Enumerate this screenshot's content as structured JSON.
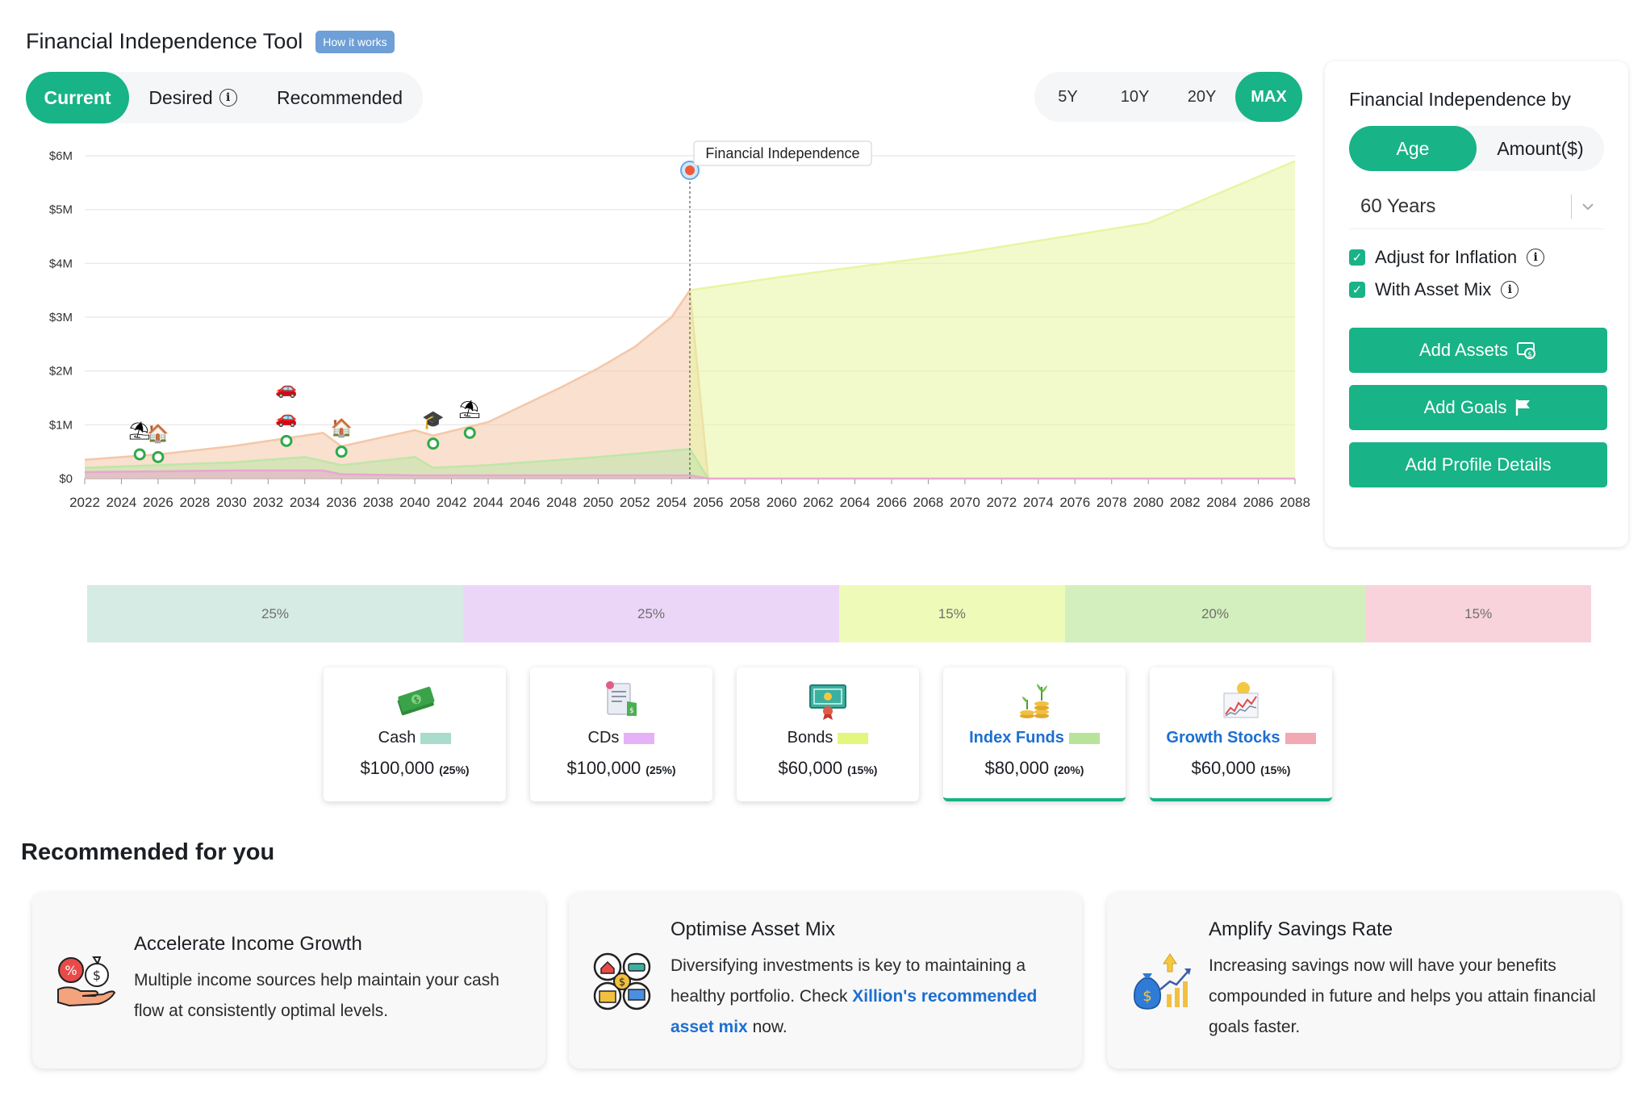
{
  "header": {
    "title": "Financial Independence Tool",
    "badge": "How it works"
  },
  "tabs": [
    {
      "label": "Current",
      "active": true
    },
    {
      "label": "Desired",
      "active": false,
      "icon": "info-icon"
    },
    {
      "label": "Recommended",
      "active": false
    }
  ],
  "ranges": [
    {
      "label": "5Y",
      "active": false
    },
    {
      "label": "10Y",
      "active": false
    },
    {
      "label": "20Y",
      "active": false
    },
    {
      "label": "MAX",
      "active": true
    }
  ],
  "chart_data": {
    "type": "area",
    "x_ticks": [
      "2022",
      "2024",
      "2026",
      "2028",
      "2030",
      "2032",
      "2034",
      "2036",
      "2038",
      "2040",
      "2042",
      "2044",
      "2046",
      "2048",
      "2050",
      "2052",
      "2054",
      "2056",
      "2058",
      "2060",
      "2062",
      "2064",
      "2066",
      "2068",
      "2070",
      "2072",
      "2074",
      "2076",
      "2078",
      "2080",
      "2082",
      "2084",
      "2086",
      "2088"
    ],
    "y_ticks": [
      "$0",
      "$1M",
      "$2M",
      "$3M",
      "$4M",
      "$5M",
      "$6M"
    ],
    "ylim": [
      0,
      6000000
    ],
    "xlim": [
      2022,
      2088
    ],
    "annotation": {
      "label": "Financial Independence",
      "year": 2055,
      "icon": "target-icon"
    },
    "series": [
      {
        "color": "#f4c7a8",
        "x": [
          2022,
          2026,
          2030,
          2034,
          2035,
          2036,
          2040,
          2041,
          2044,
          2048,
          2050,
          2052,
          2054,
          2055,
          2056
        ],
        "y": [
          350000,
          450000,
          600000,
          800000,
          850000,
          600000,
          900000,
          800000,
          1050000,
          1700000,
          2050000,
          2450000,
          3000000,
          3500000,
          0
        ]
      },
      {
        "color": "#e8f5a3",
        "x": [
          2055,
          2060,
          2070,
          2080,
          2088
        ],
        "y": [
          3500000,
          3750000,
          4200000,
          4750000,
          5900000
        ]
      },
      {
        "color": "#bfe6a8",
        "x": [
          2022,
          2030,
          2034,
          2036,
          2040,
          2041,
          2044,
          2050,
          2055,
          2056
        ],
        "y": [
          200000,
          300000,
          400000,
          250000,
          400000,
          200000,
          250000,
          400000,
          550000,
          0
        ]
      },
      {
        "color": "#e7a7cf",
        "x": [
          2022,
          2030,
          2035,
          2036,
          2040,
          2050,
          2055,
          2056,
          2088
        ],
        "y": [
          120000,
          150000,
          150000,
          80000,
          60000,
          60000,
          60000,
          0,
          0
        ]
      }
    ],
    "event_markers": [
      {
        "year": 2025,
        "value": 450000,
        "icons": [
          "beach-icon"
        ]
      },
      {
        "year": 2026,
        "value": 400000,
        "icons": [
          "house-icon"
        ]
      },
      {
        "year": 2033,
        "value": 700000,
        "icons": [
          "car-icon",
          "car-icon"
        ]
      },
      {
        "year": 2036,
        "value": 500000,
        "icons": [
          "house-icon"
        ]
      },
      {
        "year": 2041,
        "value": 650000,
        "icons": [
          "graduation-icon"
        ]
      },
      {
        "year": 2043,
        "value": 850000,
        "icons": [
          "beach-icon"
        ]
      }
    ]
  },
  "panel": {
    "title": "Financial Independence by",
    "segments": [
      {
        "label": "Age",
        "active": true
      },
      {
        "label": "Amount($)",
        "active": false
      }
    ],
    "select_value": "60 Years",
    "checks": [
      {
        "label": "Adjust for Inflation",
        "checked": true
      },
      {
        "label": "With Asset Mix",
        "checked": true
      }
    ],
    "buttons": {
      "assets": "Add Assets",
      "goals": "Add Goals",
      "profile": "Add Profile Details"
    }
  },
  "allocation": [
    {
      "label": "25%",
      "value": 25,
      "color": "#d5ebe4"
    },
    {
      "label": "25%",
      "value": 25,
      "color": "#ecd6f8"
    },
    {
      "label": "15%",
      "value": 15,
      "color": "#eefbb8"
    },
    {
      "label": "20%",
      "value": 20,
      "color": "#d3efbd"
    },
    {
      "label": "15%",
      "value": 15,
      "color": "#f8d3dc"
    }
  ],
  "assets": [
    {
      "name": "Cash",
      "amount": "$100,000",
      "pct": "(25%)",
      "color": "#a9dccd",
      "icon": "cash-icon",
      "selected": false
    },
    {
      "name": "CDs",
      "amount": "$100,000",
      "pct": "(25%)",
      "color": "#e6b2f7",
      "icon": "certificate-icon",
      "selected": false
    },
    {
      "name": "Bonds",
      "amount": "$60,000",
      "pct": "(15%)",
      "color": "#e3f77e",
      "icon": "bond-icon",
      "selected": false
    },
    {
      "name": "Index Funds",
      "amount": "$80,000",
      "pct": "(20%)",
      "color": "#b7e49a",
      "icon": "plant-coins-icon",
      "selected": true
    },
    {
      "name": "Growth Stocks",
      "amount": "$60,000",
      "pct": "(15%)",
      "color": "#f3a9b3",
      "icon": "stock-chart-icon",
      "selected": true
    }
  ],
  "recommended": {
    "title": "Recommended for you",
    "cards": [
      {
        "title": "Accelerate Income Growth",
        "text": "Multiple income sources help maintain your cash flow at consistently optimal levels.",
        "icon": "income-hand-icon"
      },
      {
        "title": "Optimise Asset Mix",
        "text_before": "Diversifying investments is key to maintaining a healthy portfolio. Check ",
        "link": "Xillion's recommended asset mix",
        "text_after": " now.",
        "icon": "asset-mix-icon"
      },
      {
        "title": "Amplify Savings Rate",
        "text": "Increasing savings now will have your benefits compounded in future and helps you attain financial goals faster.",
        "icon": "savings-growth-icon"
      }
    ]
  }
}
